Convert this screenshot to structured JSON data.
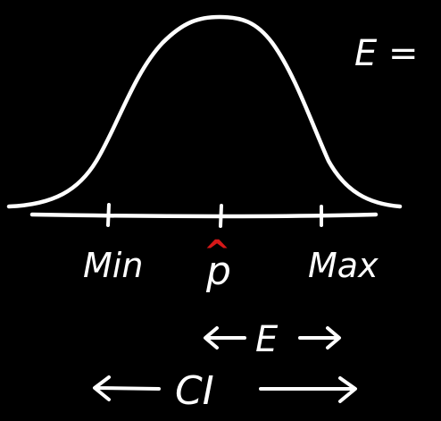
{
  "colors": {
    "background": "#000000",
    "chalk": "#ffffff",
    "accent": "#d61818"
  },
  "labels": {
    "min": "Min",
    "estimate": "p",
    "estimate_hat": "^",
    "max": "Max",
    "margin_error": "E",
    "confidence_interval": "CI",
    "equation": "E ="
  }
}
